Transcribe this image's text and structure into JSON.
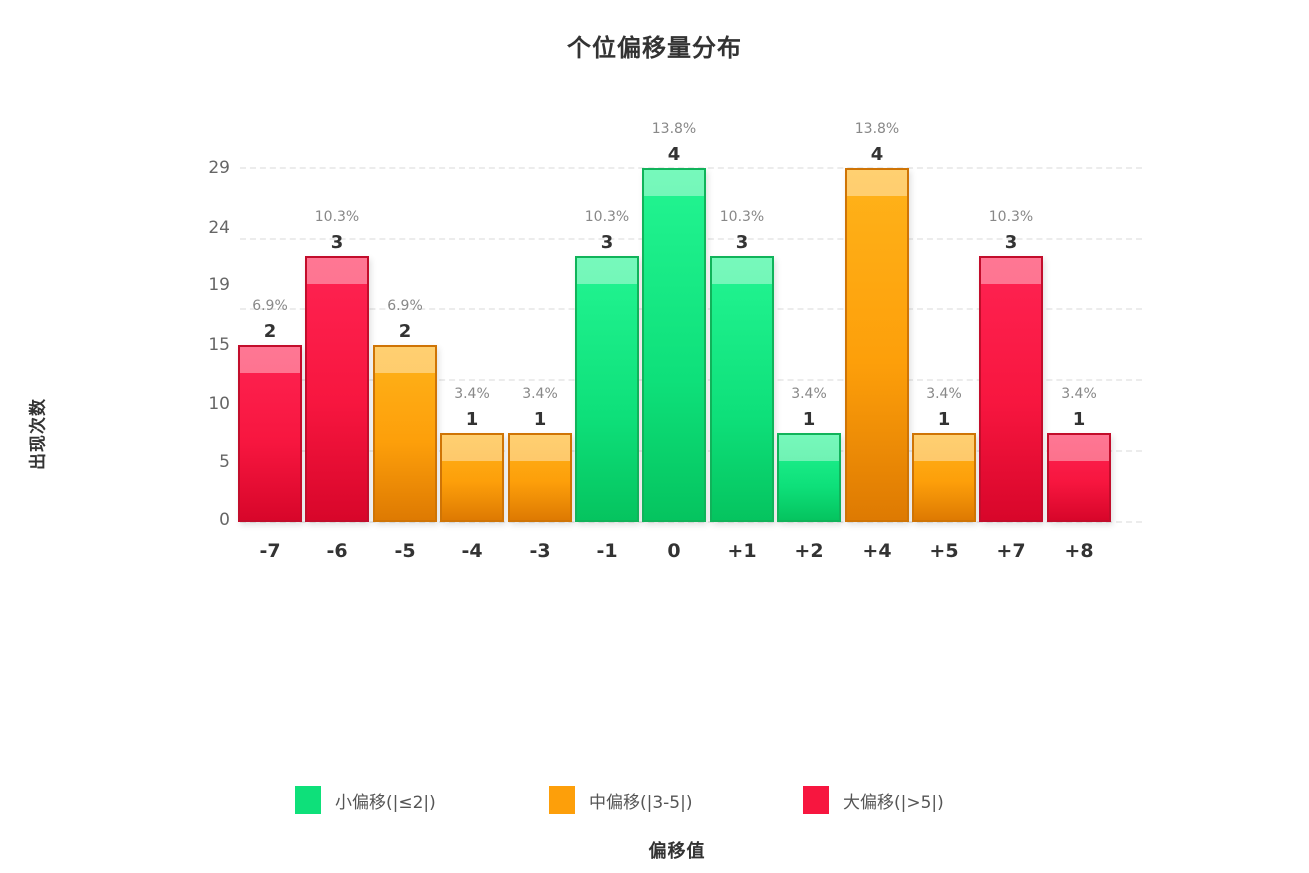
{
  "title": "个位偏移量分布",
  "y_axis_title": "出现次数",
  "x_axis_title": "偏移值",
  "colors": {
    "small": "#0ee07a",
    "medium": "#fd9f0a",
    "large": "#f7163f"
  },
  "legend": [
    {
      "label": "小偏移(|≤2|)",
      "category": "small",
      "color": "#0ee07a"
    },
    {
      "label": "中偏移(|3-5|)",
      "category": "medium",
      "color": "#fd9f0a"
    },
    {
      "label": "大偏移(|>5|)",
      "category": "large",
      "color": "#f7163f"
    }
  ],
  "y_ticks": [
    "0",
    "5",
    "10",
    "15",
    "19",
    "24",
    "29"
  ],
  "chart_data": {
    "type": "bar",
    "title": "个位偏移量分布",
    "xlabel": "偏移值",
    "ylabel": "出现次数",
    "categories": [
      "-7",
      "-6",
      "-5",
      "-4",
      "-3",
      "-1",
      "0",
      "+1",
      "+2",
      "+4",
      "+5",
      "+7",
      "+8"
    ],
    "values": [
      2,
      3,
      2,
      1,
      1,
      3,
      4,
      3,
      1,
      4,
      1,
      3,
      1
    ],
    "percentages": [
      "6.9%",
      "10.3%",
      "6.9%",
      "3.4%",
      "3.4%",
      "10.3%",
      "13.8%",
      "10.3%",
      "3.4%",
      "13.8%",
      "3.4%",
      "10.3%",
      "3.4%"
    ],
    "groups": [
      "large",
      "large",
      "medium",
      "medium",
      "medium",
      "small",
      "small",
      "small",
      "small",
      "medium",
      "medium",
      "large",
      "large"
    ],
    "y_tick_labels": [
      0,
      5,
      10,
      15,
      19,
      24,
      29
    ],
    "ylim": [
      0,
      29
    ],
    "grid": true,
    "legend_position": "bottom",
    "legend": [
      "小偏移(|≤2|)",
      "中偏移(|3-5|)",
      "大偏移(|>5|)"
    ]
  }
}
